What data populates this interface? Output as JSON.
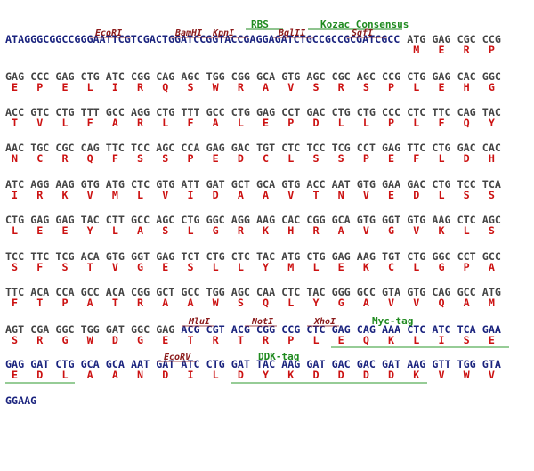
{
  "feature_labels": [
    "RBS",
    "Kozac Consensus"
  ],
  "enzyme_labels": [
    "EcoRI",
    "BamHI",
    "KpnI",
    "BglII",
    "SgfI"
  ],
  "rows": [
    {
      "segments": [
        {
          "color": "#1a237e",
          "codons": [
            "ATAGGGCGGCCGGGAATTCGTCGACTGGATCCGGTACCGAGGAGATCTGCCGCCGCGATCGCC"
          ],
          "aa": [
            null
          ]
        },
        {
          "color": "#444444",
          "codons": [
            "ATG",
            "GAG",
            "CGC",
            "CCG"
          ],
          "aa": [
            "M",
            "E",
            "R",
            "P"
          ]
        }
      ]
    },
    {
      "segments": [
        {
          "color": "#444444",
          "codons": [
            "GAG",
            "CCC",
            "GAG",
            "CTG",
            "ATC",
            "CGG",
            "CAG",
            "AGC",
            "TGG",
            "CGG",
            "GCA",
            "GTG",
            "AGC",
            "CGC",
            "AGC",
            "CCG",
            "CTG",
            "GAG",
            "CAC",
            "GGC"
          ],
          "aa": [
            "E",
            "P",
            "E",
            "L",
            "I",
            "R",
            "Q",
            "S",
            "W",
            "R",
            "A",
            "V",
            "S",
            "R",
            "S",
            "P",
            "L",
            "E",
            "H",
            "G"
          ]
        }
      ]
    },
    {
      "segments": [
        {
          "color": "#444444",
          "codons": [
            "ACC",
            "GTC",
            "CTG",
            "TTT",
            "GCC",
            "AGG",
            "CTG",
            "TTT",
            "GCC",
            "CTG",
            "GAG",
            "CCT",
            "GAC",
            "CTG",
            "CTG",
            "CCC",
            "CTC",
            "TTC",
            "CAG",
            "TAC"
          ],
          "aa": [
            "T",
            "V",
            "L",
            "F",
            "A",
            "R",
            "L",
            "F",
            "A",
            "L",
            "E",
            "P",
            "D",
            "L",
            "L",
            "P",
            "L",
            "F",
            "Q",
            "Y"
          ]
        }
      ]
    },
    {
      "segments": [
        {
          "color": "#444444",
          "codons": [
            "AAC",
            "TGC",
            "CGC",
            "CAG",
            "TTC",
            "TCC",
            "AGC",
            "CCA",
            "GAG",
            "GAC",
            "TGT",
            "CTC",
            "TCC",
            "TCG",
            "CCT",
            "GAG",
            "TTC",
            "CTG",
            "GAC",
            "CAC"
          ],
          "aa": [
            "N",
            "C",
            "R",
            "Q",
            "F",
            "S",
            "S",
            "P",
            "E",
            "D",
            "C",
            "L",
            "S",
            "S",
            "P",
            "E",
            "F",
            "L",
            "D",
            "H"
          ]
        }
      ]
    },
    {
      "segments": [
        {
          "color": "#444444",
          "codons": [
            "ATC",
            "AGG",
            "AAG",
            "GTG",
            "ATG",
            "CTC",
            "GTG",
            "ATT",
            "GAT",
            "GCT",
            "GCA",
            "GTG",
            "ACC",
            "AAT",
            "GTG",
            "GAA",
            "GAC",
            "CTG",
            "TCC",
            "TCA"
          ],
          "aa": [
            "I",
            "R",
            "K",
            "V",
            "M",
            "L",
            "V",
            "I",
            "D",
            "A",
            "A",
            "V",
            "T",
            "N",
            "V",
            "E",
            "D",
            "L",
            "S",
            "S"
          ]
        }
      ]
    },
    {
      "segments": [
        {
          "color": "#444444",
          "codons": [
            "CTG",
            "GAG",
            "GAG",
            "TAC",
            "CTT",
            "GCC",
            "AGC",
            "CTG",
            "GGC",
            "AGG",
            "AAG",
            "CAC",
            "CGG",
            "GCA",
            "GTG",
            "GGT",
            "GTG",
            "AAG",
            "CTC",
            "AGC"
          ],
          "aa": [
            "L",
            "E",
            "E",
            "Y",
            "L",
            "A",
            "S",
            "L",
            "G",
            "R",
            "K",
            "H",
            "R",
            "A",
            "V",
            "G",
            "V",
            "K",
            "L",
            "S"
          ]
        }
      ]
    },
    {
      "segments": [
        {
          "color": "#444444",
          "codons": [
            "TCC",
            "TTC",
            "TCG",
            "ACA",
            "GTG",
            "GGT",
            "GAG",
            "TCT",
            "CTG",
            "CTC",
            "TAC",
            "ATG",
            "CTG",
            "GAG",
            "AAG",
            "TGT",
            "CTG",
            "GGC",
            "CCT",
            "GCC"
          ],
          "aa": [
            "S",
            "F",
            "S",
            "T",
            "V",
            "G",
            "E",
            "S",
            "L",
            "L",
            "Y",
            "M",
            "L",
            "E",
            "K",
            "C",
            "L",
            "G",
            "P",
            "A"
          ]
        }
      ]
    },
    {
      "segments": [
        {
          "color": "#444444",
          "codons": [
            "TTC",
            "ACA",
            "CCA",
            "GCC",
            "ACA",
            "CGG",
            "GCT",
            "GCC",
            "TGG",
            "AGC",
            "CAA",
            "CTC",
            "TAC",
            "GGG",
            "GCC",
            "GTA",
            "GTG",
            "CAG",
            "GCC",
            "ATG"
          ],
          "aa": [
            "F",
            "T",
            "P",
            "A",
            "T",
            "R",
            "A",
            "A",
            "W",
            "S",
            "Q",
            "L",
            "Y",
            "G",
            "A",
            "V",
            "V",
            "Q",
            "A",
            "M"
          ]
        }
      ]
    },
    {
      "segments": [
        {
          "color": "#444444",
          "codons": [
            "AGT",
            "CGA",
            "GGC",
            "TGG",
            "GAT",
            "GGC",
            "GAG"
          ],
          "aa": [
            "S",
            "R",
            "G",
            "W",
            "D",
            "G",
            "E"
          ]
        },
        {
          "color": "#1a237e",
          "codons": [
            "ACG",
            "CGT",
            "ACG",
            "CGG",
            "CCG",
            "CTC",
            "GAG",
            "CAG",
            "AAA",
            "CTC",
            "ATC",
            "TCA",
            "GAA"
          ],
          "aa": [
            "T",
            "R",
            "T",
            "R",
            "P",
            "L",
            "E",
            "Q",
            "K",
            "L",
            "I",
            "S",
            "E"
          ]
        }
      ]
    },
    {
      "segments": [
        {
          "color": "#1a237e",
          "codons": [
            "GAG",
            "GAT",
            "CTG",
            "GCA",
            "GCA",
            "AAT",
            "GAT",
            "ATC",
            "CTG",
            "GAT",
            "TAC",
            "AAG",
            "GAT",
            "GAC",
            "GAC",
            "GAT",
            "AAG",
            "GTT",
            "TGG",
            "GTA"
          ],
          "aa": [
            "E",
            "D",
            "L",
            "A",
            "A",
            "N",
            "D",
            "I",
            "L",
            "D",
            "Y",
            "K",
            "D",
            "D",
            "D",
            "D",
            "K",
            "V",
            "W",
            "V"
          ]
        }
      ]
    },
    {
      "segments": [
        {
          "color": "#1a237e",
          "codons": [
            "GGAAG"
          ],
          "aa": [
            null
          ]
        }
      ]
    }
  ],
  "row9_enzymes": [
    "MluI",
    "NotI",
    "XhoI"
  ],
  "row9_tag": "Myc-tag",
  "row10_enzymes": [
    "EcoRV"
  ],
  "row10_tag": "DDK-tag"
}
